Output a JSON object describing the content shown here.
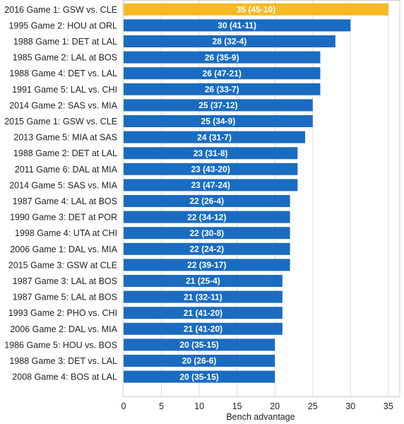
{
  "chart_data": {
    "type": "bar",
    "orientation": "horizontal",
    "xlabel": "Bench advantage",
    "xlim": [
      0,
      37
    ],
    "xticks": [
      0,
      5,
      10,
      15,
      20,
      25,
      30,
      35
    ],
    "grid": true,
    "colors": {
      "default": "#1b6cc0",
      "highlight": "#f5b925",
      "grid": "#dddddd",
      "frame": "#cccccc"
    },
    "categories": [
      "2016 Game 1: GSW vs. CLE",
      "1995 Game 2: HOU at ORL",
      "1988 Game 1: DET at LAL",
      "1985 Game 2: LAL at BOS",
      "1988 Game 4: DET vs. LAL",
      "1991 Game 5: LAL vs. CHI",
      "2014 Game 2: SAS vs. MIA",
      "2015 Game 1: GSW vs. CLE",
      "2013 Game 5: MIA at SAS",
      "1988 Game 2: DET at LAL",
      "2011 Game 6: DAL at MIA",
      "2014 Game 5: SAS vs. MIA",
      "1987 Game 4: LAL at BOS",
      "1990 Game 3: DET at POR",
      "1998 Game 4: UTA at CHI",
      "2006 Game 1: DAL vs. MIA",
      "2015 Game 3: GSW at CLE",
      "1987 Game 3: LAL at BOS",
      "1987 Game 5: LAL at BOS",
      "1993 Game 2: PHO vs. CHI",
      "2006 Game 2: DAL vs. MIA",
      "1986 Game 5: HOU vs. BOS",
      "1988 Game 3: DET vs. LAL",
      "2008 Game 4: BOS at LAL"
    ],
    "values": [
      35,
      30,
      28,
      26,
      26,
      26,
      25,
      25,
      24,
      23,
      23,
      23,
      22,
      22,
      22,
      22,
      22,
      21,
      21,
      21,
      21,
      20,
      20,
      20
    ],
    "data_labels": [
      "35 (45-10)",
      "30 (41-11)",
      "28 (32-4)",
      "26 (35-9)",
      "26 (47-21)",
      "26 (33-7)",
      "25 (37-12)",
      "25 (34-9)",
      "24 (31-7)",
      "23 (31-8)",
      "23 (43-20)",
      "23 (47-24)",
      "22 (26-4)",
      "22 (34-12)",
      "22 (30-8)",
      "22 (24-2)",
      "22 (39-17)",
      "21 (25-4)",
      "21 (32-11)",
      "21 (41-20)",
      "21 (41-20)",
      "20 (35-15)",
      "20 (26-6)",
      "20 (35-15)"
    ],
    "highlight_index": 0
  }
}
